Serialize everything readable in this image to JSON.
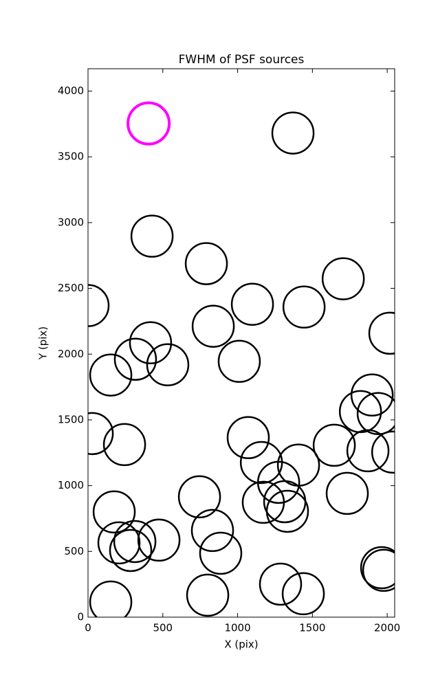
{
  "chart_data": {
    "type": "scatter",
    "title": "FWHM of PSF sources",
    "x_label": "X (pix)",
    "y_label": "Y (pix)",
    "xlim": [
      0,
      2050
    ],
    "ylim": [
      0,
      4170
    ],
    "xticks": [
      0,
      500,
      1000,
      1500,
      2000
    ],
    "yticks": [
      0,
      500,
      1000,
      1500,
      2000,
      2500,
      3000,
      3500,
      4000
    ],
    "series": [
      {
        "color": "#000000",
        "x": [
          1370,
          428,
          791,
          0,
          1099,
          1444,
          1706,
          2018,
          837,
          418,
          317,
          533,
          152,
          1011,
          1899,
          1821,
          1940,
          28,
          244,
          1071,
          1646,
          1871,
          2037,
          1159,
          1407,
          1274,
          1733,
          745,
          1172,
          1315,
          1333,
          175,
          832,
          313,
          207,
          474,
          285,
          887,
          1963,
          1977,
          1287,
          800,
          1439,
          152
        ],
        "values": [
          3681,
          2897,
          2688,
          2369,
          2379,
          2358,
          2573,
          2159,
          2212,
          2086,
          1961,
          1919,
          1841,
          1945,
          1689,
          1563,
          1548,
          1396,
          1312,
          1365,
          1307,
          1265,
          1255,
          1176,
          1156,
          1025,
          941,
          915,
          873,
          878,
          805,
          800,
          659,
          575,
          565,
          586,
          507,
          486,
          376,
          356,
          251,
          167,
          178,
          115
        ]
      },
      {
        "color": "#ff00ff",
        "x": [
          405
        ],
        "values": [
          3754
        ]
      }
    ]
  }
}
